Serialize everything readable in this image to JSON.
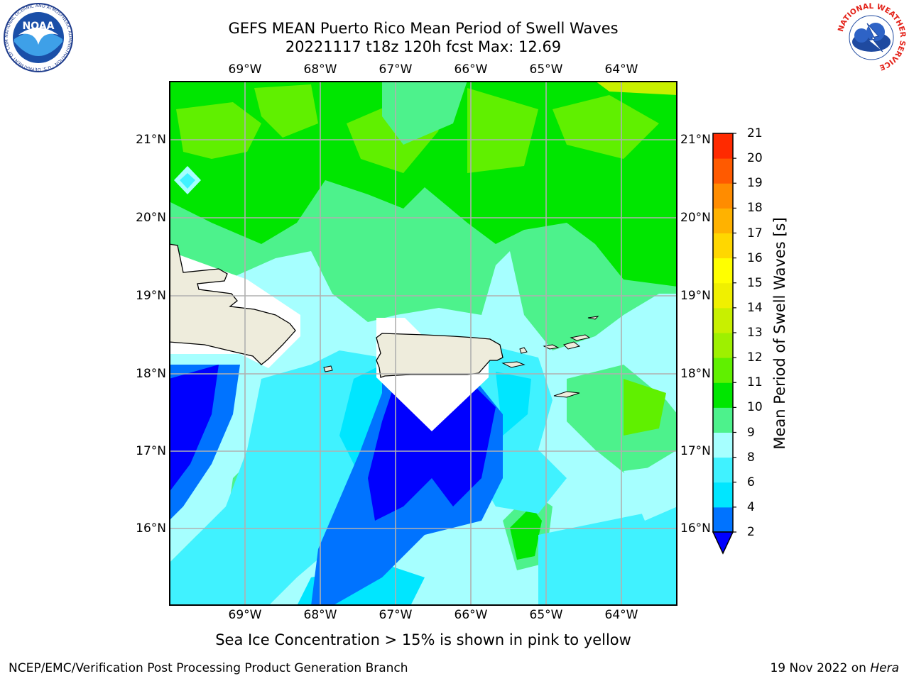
{
  "title": {
    "line1": "GEFS MEAN Puerto Rico Mean Period of Swell Waves",
    "line2": "20221117 t18z 120h fcst   Max: 12.69"
  },
  "map": {
    "longitude_labels": [
      "69°W",
      "68°W",
      "67°W",
      "66°W",
      "65°W",
      "64°W"
    ],
    "latitude_labels": [
      "21°N",
      "20°N",
      "19°N",
      "18°N",
      "17°N",
      "16°N"
    ],
    "land_color": "#eeecdc",
    "grid_color": "#b0b0b0"
  },
  "colorbar": {
    "label": "Mean Period of Swell Waves [s]",
    "ticks": [
      "21",
      "20",
      "19",
      "18",
      "17",
      "16",
      "15",
      "14",
      "13",
      "12",
      "11",
      "10",
      "9",
      "8",
      "6",
      "4",
      "2"
    ],
    "colors": [
      "#0000ff",
      "#0073ff",
      "#00e6ff",
      "#40f2ff",
      "#a6ffff",
      "#4df28c",
      "#00e600",
      "#60f000",
      "#9ef000",
      "#c8f000",
      "#f0f000",
      "#ffff00",
      "#ffd700",
      "#ffb200",
      "#ff8c00",
      "#ff5a00",
      "#ff2a00",
      "#ff0000"
    ]
  },
  "footnote": "Sea Ice Concentration > 15% is shown in pink to yellow",
  "credits": {
    "left": "NCEP/EMC/Verification Post Processing Product Generation Branch",
    "right_date": "19 Nov 2022 on ",
    "right_host": "Hera"
  },
  "logos": {
    "noaa_text": "NOAA",
    "noaa_ring": "NATIONAL OCEANIC AND ATMOSPHERIC ADMINISTRATION · U.S. DEPARTMENT OF COMMERCE",
    "nws_ring": "NATIONAL WEATHER SERVICE"
  }
}
